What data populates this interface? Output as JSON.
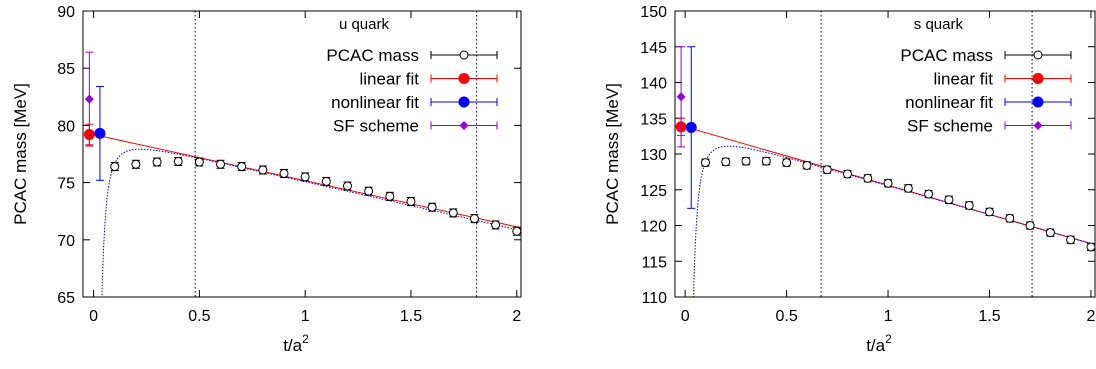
{
  "chart_data": [
    {
      "type": "scatter",
      "title": "",
      "legend_title": "u quark",
      "legend_position": "top-right",
      "xlabel": "t/a",
      "xlabel_sup": "2",
      "ylabel": "PCAC mass [MeV]",
      "xlim": [
        -0.05,
        2.02
      ],
      "ylim": [
        65,
        90
      ],
      "xticks": [
        0,
        0.5,
        1,
        1.5,
        2
      ],
      "xtick_labels": [
        "0",
        "0.5",
        "1",
        "1.5",
        "2"
      ],
      "yticks": [
        65,
        70,
        75,
        80,
        85,
        90
      ],
      "ytick_labels": [
        "65",
        "70",
        "75",
        "80",
        "85",
        "90"
      ],
      "grid": false,
      "vlines": [
        0.48,
        1.81
      ],
      "series": [
        {
          "name": "PCAC mass",
          "marker": "open-circle",
          "color": "#000000",
          "x": [
            0.1,
            0.2,
            0.3,
            0.4,
            0.5,
            0.6,
            0.7,
            0.8,
            0.9,
            1.0,
            1.1,
            1.2,
            1.3,
            1.4,
            1.5,
            1.6,
            1.7,
            1.8,
            1.9,
            2.0
          ],
          "y": [
            76.4,
            76.6,
            76.8,
            76.85,
            76.8,
            76.6,
            76.4,
            76.1,
            75.8,
            75.5,
            75.1,
            74.7,
            74.25,
            73.8,
            73.35,
            72.85,
            72.35,
            71.85,
            71.3,
            70.75
          ],
          "err": [
            0.35,
            0.35,
            0.35,
            0.35,
            0.35,
            0.35,
            0.35,
            0.35,
            0.35,
            0.35,
            0.35,
            0.35,
            0.35,
            0.35,
            0.35,
            0.35,
            0.35,
            0.35,
            0.35,
            0.35
          ]
        },
        {
          "name": "linear fit",
          "marker": "filled-circle",
          "color": "#ff0000",
          "x": [
            -0.02
          ],
          "y": [
            79.2
          ],
          "err": [
            0.9
          ],
          "fit_line": {
            "x": [
              0,
              2.02
            ],
            "y": [
              79.2,
              71.05
            ]
          }
        },
        {
          "name": "nonlinear fit",
          "marker": "filled-circle",
          "color": "#0000ff",
          "x": [
            0.03
          ],
          "y": [
            79.3
          ],
          "err": [
            4.1
          ],
          "fit_curve": {
            "type": "asym_dotted",
            "y_inf_slope": [
              79.3,
              -4.2
            ],
            "k": 0.022,
            "p": 2
          }
        },
        {
          "name": "SF scheme",
          "marker": "filled-diamond",
          "color": "#9400d3",
          "x": [
            -0.02
          ],
          "y": [
            82.3
          ],
          "err": [
            4.1
          ]
        }
      ]
    },
    {
      "type": "scatter",
      "title": "",
      "legend_title": "s quark",
      "legend_position": "top-right",
      "xlabel": "t/a",
      "xlabel_sup": "2",
      "ylabel": "PCAC mass [MeV]",
      "xlim": [
        -0.05,
        2.02
      ],
      "ylim": [
        110,
        150
      ],
      "xticks": [
        0,
        0.5,
        1,
        1.5,
        2
      ],
      "xtick_labels": [
        "0",
        "0.5",
        "1",
        "1.5",
        "2"
      ],
      "yticks": [
        110,
        115,
        120,
        125,
        130,
        135,
        140,
        145,
        150
      ],
      "ytick_labels": [
        "110",
        "115",
        "120",
        "125",
        "130",
        "135",
        "140",
        "145",
        "150"
      ],
      "grid": false,
      "vlines": [
        0.67,
        1.71
      ],
      "series": [
        {
          "name": "PCAC mass",
          "marker": "open-circle",
          "color": "#000000",
          "x": [
            0.1,
            0.2,
            0.3,
            0.4,
            0.5,
            0.6,
            0.7,
            0.8,
            0.9,
            1.0,
            1.1,
            1.2,
            1.3,
            1.4,
            1.5,
            1.6,
            1.7,
            1.8,
            1.9,
            2.0
          ],
          "y": [
            128.8,
            128.9,
            129.0,
            129.0,
            128.8,
            128.4,
            127.8,
            127.2,
            126.6,
            125.9,
            125.2,
            124.4,
            123.6,
            122.8,
            121.9,
            121.0,
            120.0,
            119.0,
            118.0,
            117.0
          ],
          "err": [
            0.5,
            0.5,
            0.5,
            0.5,
            0.5,
            0.5,
            0.5,
            0.5,
            0.5,
            0.5,
            0.5,
            0.5,
            0.5,
            0.5,
            0.5,
            0.5,
            0.5,
            0.5,
            0.5,
            0.5
          ]
        },
        {
          "name": "linear fit",
          "marker": "filled-circle",
          "color": "#ff0000",
          "x": [
            -0.02
          ],
          "y": [
            133.8
          ],
          "err": [
            1.2
          ],
          "fit_line": {
            "x": [
              0,
              2.02
            ],
            "y": [
              133.8,
              117.3
            ]
          }
        },
        {
          "name": "nonlinear fit",
          "marker": "filled-circle",
          "color": "#0000ff",
          "x": [
            0.03
          ],
          "y": [
            133.7
          ],
          "err": [
            11.3
          ],
          "fit_curve": {
            "type": "asym_dotted",
            "y_inf_slope": [
              133.7,
              -8.1
            ],
            "k": 0.04,
            "p": 2
          }
        },
        {
          "name": "SF scheme",
          "marker": "filled-diamond",
          "color": "#9400d3",
          "x": [
            -0.02
          ],
          "y": [
            138.0
          ],
          "err": [
            7.0
          ]
        }
      ]
    }
  ]
}
